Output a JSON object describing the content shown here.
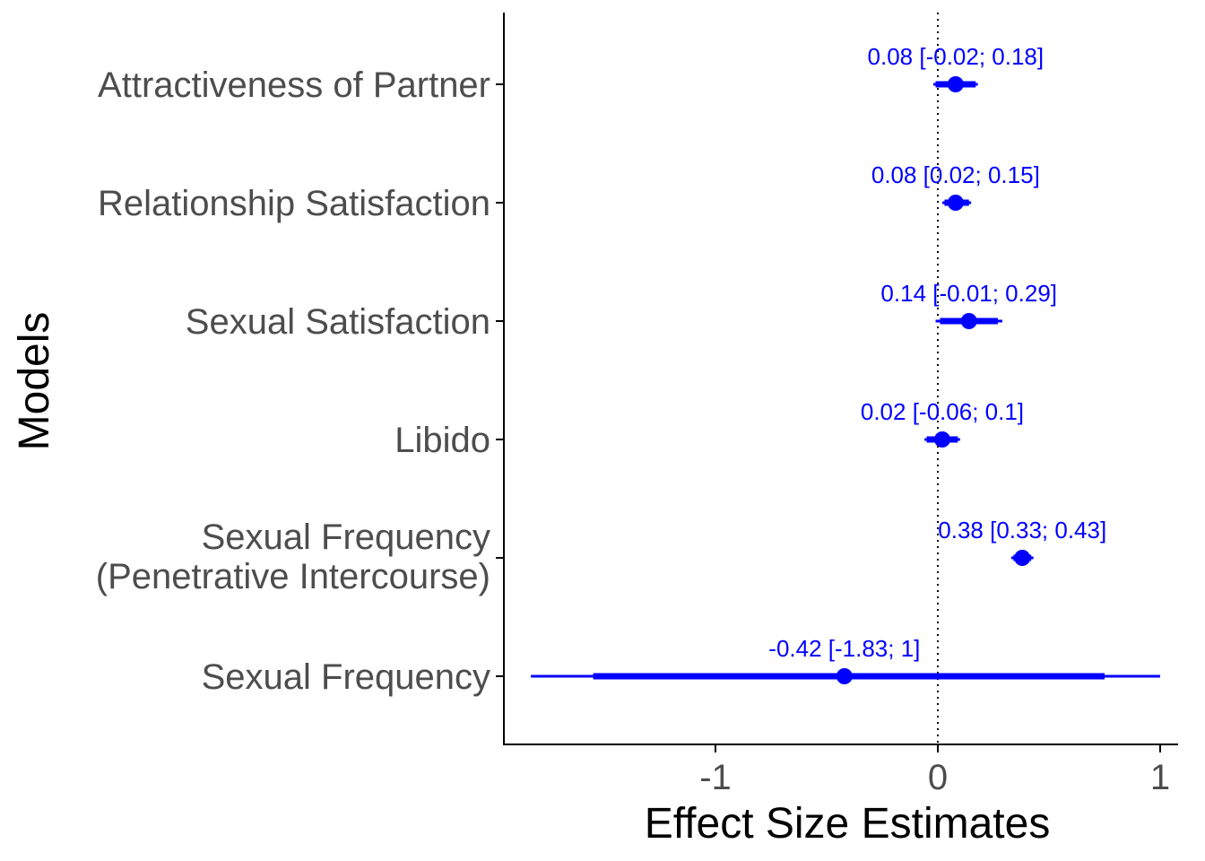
{
  "chart_data": {
    "type": "forest",
    "xlabel": "Effect Size Estimates",
    "ylabel": "Models",
    "xlim": [
      -1.95,
      1.1
    ],
    "xticks": [
      -1,
      0,
      1
    ],
    "xtick_labels": [
      "-1",
      "0",
      "1"
    ],
    "reference_line": 0,
    "color": "#0000ff",
    "grid": false,
    "rows": [
      {
        "label": [
          "Attractiveness of Partner"
        ],
        "estimate": 0.08,
        "ci_low": -0.02,
        "ci_high": 0.18,
        "inner_low": -0.01,
        "inner_high": 0.17,
        "annotation": "0.08 [-0.02; 0.18]"
      },
      {
        "label": [
          "Relationship Satisfaction"
        ],
        "estimate": 0.08,
        "ci_low": 0.02,
        "ci_high": 0.15,
        "inner_low": 0.03,
        "inner_high": 0.14,
        "annotation": "0.08 [0.02; 0.15]"
      },
      {
        "label": [
          "Sexual Satisfaction"
        ],
        "estimate": 0.14,
        "ci_low": -0.01,
        "ci_high": 0.29,
        "inner_low": 0.01,
        "inner_high": 0.27,
        "annotation": "0.14 [-0.01; 0.29]"
      },
      {
        "label": [
          "Libido"
        ],
        "estimate": 0.02,
        "ci_low": -0.06,
        "ci_high": 0.1,
        "inner_low": -0.05,
        "inner_high": 0.09,
        "annotation": "0.02 [-0.06; 0.1]"
      },
      {
        "label": [
          "Sexual Frequency",
          "(Penetrative Intercourse)"
        ],
        "estimate": 0.38,
        "ci_low": 0.33,
        "ci_high": 0.43,
        "inner_low": 0.34,
        "inner_high": 0.42,
        "annotation": "0.38 [0.33; 0.43]"
      },
      {
        "label": [
          "Sexual Frequency"
        ],
        "estimate": -0.42,
        "ci_low": -1.83,
        "ci_high": 1,
        "inner_low": -1.55,
        "inner_high": 0.75,
        "annotation": "-0.42 [-1.83; 1]"
      }
    ]
  }
}
